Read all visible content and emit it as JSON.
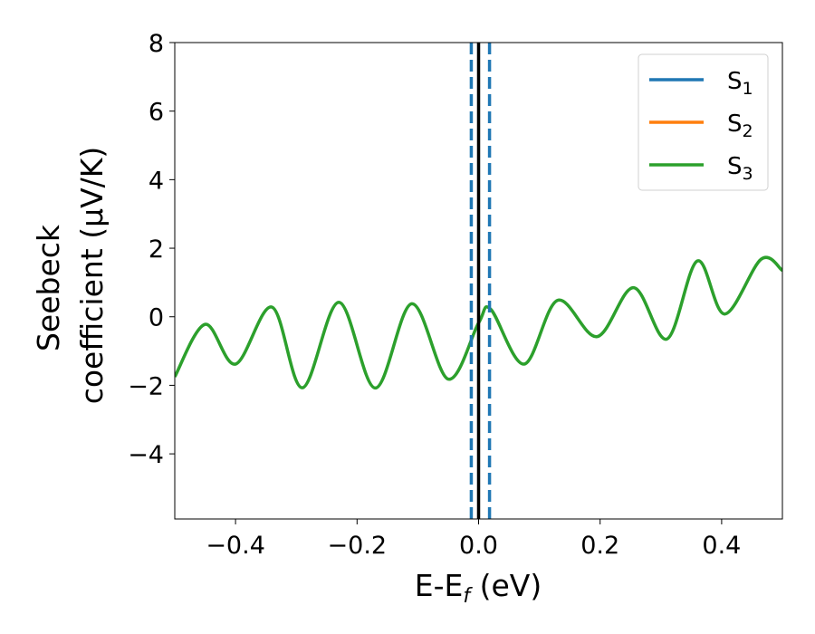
{
  "chart_data": {
    "type": "line",
    "title": "",
    "xlabel": {
      "text": "E-E",
      "sub": "f",
      "tail": " (eV)"
    },
    "ylabel": {
      "line1": "Seebeck",
      "line2": "coefficient  (μV/K)"
    },
    "xlim": [
      -0.5,
      0.5
    ],
    "ylim": [
      -5.9,
      8.0
    ],
    "xticks": [
      -0.4,
      -0.2,
      0.0,
      0.2,
      0.4
    ],
    "xtick_labels": [
      "−0.4",
      "−0.2",
      "0.0",
      "0.2",
      "0.4"
    ],
    "yticks": [
      -4,
      -2,
      0,
      2,
      4,
      6,
      8
    ],
    "ytick_labels": [
      "−4",
      "−2",
      "0",
      "2",
      "4",
      "6",
      "8"
    ],
    "grid": false,
    "legend_position": "top-right",
    "vlines": [
      {
        "x": 0.0,
        "style": "solid",
        "color": "#000000"
      },
      {
        "x": -0.012,
        "style": "dashed",
        "color": "#1f77b4"
      },
      {
        "x": 0.018,
        "style": "dashed",
        "color": "#1f77b4"
      }
    ],
    "series": [
      {
        "name": "S",
        "sub": "1",
        "color": "#1f77b4",
        "x": [],
        "y": []
      },
      {
        "name": "S",
        "sub": "2",
        "color": "#ff7f0e",
        "x": [],
        "y": []
      },
      {
        "name": "S",
        "sub": "3",
        "color": "#2ca02c",
        "x": [
          -0.5,
          -0.45,
          -0.4,
          -0.34,
          -0.29,
          -0.23,
          -0.17,
          -0.11,
          -0.05,
          0.0,
          0.02,
          0.075,
          0.13,
          0.195,
          0.255,
          0.31,
          0.36,
          0.405,
          0.465,
          0.5
        ],
        "y": [
          -1.75,
          -0.22,
          -1.38,
          0.28,
          -2.07,
          0.42,
          -2.08,
          0.38,
          -1.82,
          -0.18,
          0.22,
          -1.38,
          0.48,
          -0.58,
          0.85,
          -0.65,
          1.63,
          0.08,
          1.68,
          1.35
        ]
      }
    ]
  }
}
